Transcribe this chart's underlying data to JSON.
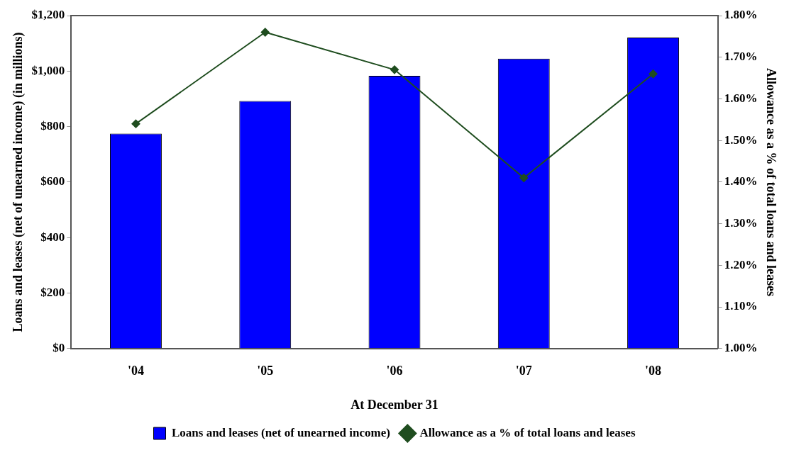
{
  "chart_data": {
    "type": "bar",
    "xlabel": "At December 31",
    "ylabel": "Loans and leases (net of unearned income) (in millions)",
    "y2label": "Allowance as a % of total loans and leases",
    "categories": [
      "'04",
      "'05",
      "'06",
      "'07",
      "'08"
    ],
    "series": [
      {
        "name": "Loans and leases (net of unearned income)",
        "color": "#0000ff",
        "values": [
          775,
          892,
          983,
          1045,
          1121
        ]
      },
      {
        "name": "Allowance as a % of total loans and leases",
        "type": "line",
        "axis": "y2",
        "color": "#1f4d1f",
        "marker": "diamond",
        "values": [
          1.54,
          1.76,
          1.67,
          1.41,
          1.66
        ]
      }
    ],
    "ylim": [
      0,
      1200
    ],
    "yticks": [
      {
        "value": 0,
        "label": "$0"
      },
      {
        "value": 200,
        "label": "$200"
      },
      {
        "value": 400,
        "label": "$400"
      },
      {
        "value": 600,
        "label": "$600"
      },
      {
        "value": 800,
        "label": "$800"
      },
      {
        "value": 1000,
        "label": "$1,000"
      },
      {
        "value": 1200,
        "label": "$1,200"
      }
    ],
    "y2lim": [
      1.0,
      1.8
    ],
    "y2ticks": [
      {
        "value": 1.0,
        "label": "1.00%"
      },
      {
        "value": 1.1,
        "label": "1.10%"
      },
      {
        "value": 1.2,
        "label": "1.20%"
      },
      {
        "value": 1.3,
        "label": "1.30%"
      },
      {
        "value": 1.4,
        "label": "1.40%"
      },
      {
        "value": 1.5,
        "label": "1.50%"
      },
      {
        "value": 1.6,
        "label": "1.60%"
      },
      {
        "value": 1.7,
        "label": "1.70%"
      },
      {
        "value": 1.8,
        "label": "1.80%"
      }
    ],
    "grid": false,
    "legend": "bottom"
  }
}
